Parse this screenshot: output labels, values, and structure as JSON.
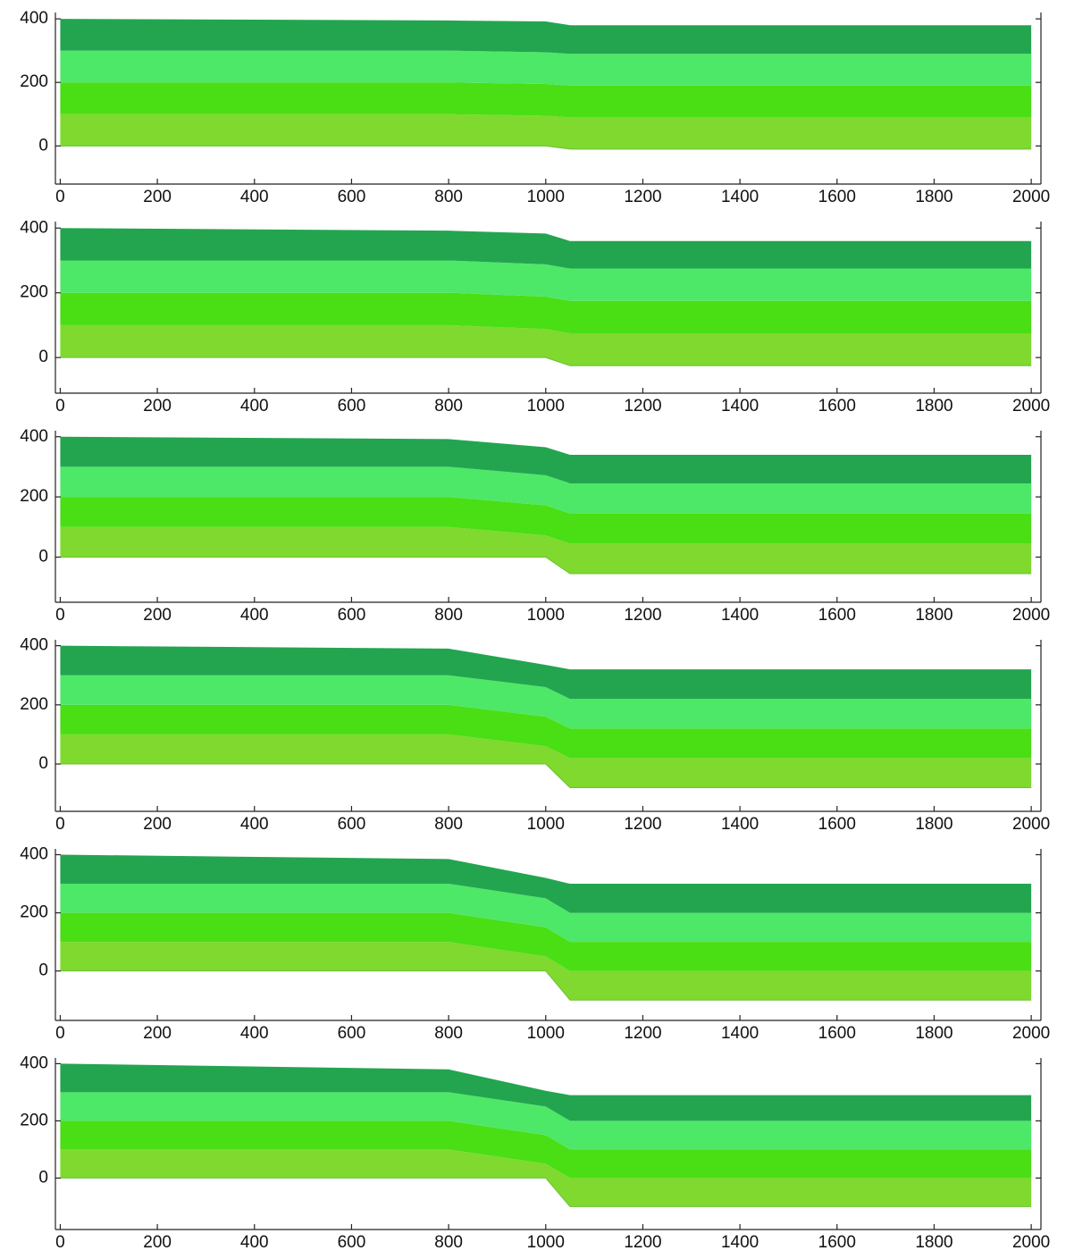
{
  "chart_data": [
    {
      "type": "layers",
      "x": [
        0,
        800,
        1000,
        1050,
        2000
      ],
      "base": [
        0,
        0,
        0,
        -10,
        -10
      ],
      "series": [
        {
          "color": "#7fd92e",
          "values": [
            100,
            100,
            95,
            100,
            100
          ]
        },
        {
          "color": "#4ade14",
          "values": [
            100,
            100,
            100,
            100,
            100
          ]
        },
        {
          "color": "#4de868",
          "values": [
            100,
            100,
            100,
            100,
            100
          ]
        },
        {
          "color": "#23a550",
          "values": [
            100,
            95,
            97,
            90,
            90
          ]
        }
      ],
      "xlim": [
        -10,
        2020
      ],
      "xticks": [
        0,
        200,
        400,
        600,
        800,
        1000,
        1200,
        1400,
        1600,
        1800,
        2000
      ],
      "ylim": [
        -120,
        420
      ],
      "yticks": [
        0,
        200,
        400
      ]
    },
    {
      "type": "layers",
      "x": [
        0,
        800,
        1000,
        1050,
        2000
      ],
      "base": [
        0,
        0,
        0,
        -25,
        -25
      ],
      "series": [
        {
          "color": "#7fd92e",
          "values": [
            100,
            100,
            88,
            100,
            100
          ]
        },
        {
          "color": "#4ade14",
          "values": [
            100,
            100,
            100,
            100,
            100
          ]
        },
        {
          "color": "#4de868",
          "values": [
            100,
            100,
            100,
            100,
            100
          ]
        },
        {
          "color": "#23a550",
          "values": [
            100,
            92,
            95,
            85,
            85
          ]
        }
      ],
      "xlim": [
        -10,
        2020
      ],
      "xticks": [
        0,
        200,
        400,
        600,
        800,
        1000,
        1200,
        1400,
        1600,
        1800,
        2000
      ],
      "ylim": [
        -110,
        420
      ],
      "yticks": [
        0,
        200,
        400
      ]
    },
    {
      "type": "layers",
      "x": [
        0,
        800,
        1000,
        1050,
        2000
      ],
      "base": [
        0,
        0,
        0,
        -55,
        -55
      ],
      "series": [
        {
          "color": "#7fd92e",
          "values": [
            100,
            100,
            72,
            100,
            100
          ]
        },
        {
          "color": "#4ade14",
          "values": [
            100,
            100,
            100,
            100,
            100
          ]
        },
        {
          "color": "#4de868",
          "values": [
            100,
            100,
            100,
            100,
            100
          ]
        },
        {
          "color": "#23a550",
          "values": [
            100,
            92,
            93,
            95,
            95
          ]
        }
      ],
      "xlim": [
        -10,
        2020
      ],
      "xticks": [
        0,
        200,
        400,
        600,
        800,
        1000,
        1200,
        1400,
        1600,
        1800,
        2000
      ],
      "ylim": [
        -150,
        420
      ],
      "yticks": [
        0,
        200,
        400
      ]
    },
    {
      "type": "layers",
      "x": [
        0,
        800,
        1000,
        1050,
        2000
      ],
      "base": [
        0,
        0,
        0,
        -80,
        -80
      ],
      "series": [
        {
          "color": "#7fd92e",
          "values": [
            100,
            100,
            60,
            100,
            100
          ]
        },
        {
          "color": "#4ade14",
          "values": [
            100,
            100,
            100,
            100,
            100
          ]
        },
        {
          "color": "#4de868",
          "values": [
            100,
            100,
            100,
            100,
            100
          ]
        },
        {
          "color": "#23a550",
          "values": [
            100,
            90,
            75,
            100,
            100
          ]
        }
      ],
      "xlim": [
        -10,
        2020
      ],
      "xticks": [
        0,
        200,
        400,
        600,
        800,
        1000,
        1200,
        1400,
        1600,
        1800,
        2000
      ],
      "ylim": [
        -160,
        420
      ],
      "yticks": [
        0,
        200,
        400
      ]
    },
    {
      "type": "layers",
      "x": [
        0,
        800,
        1000,
        1050,
        2000
      ],
      "base": [
        0,
        0,
        0,
        -100,
        -100
      ],
      "series": [
        {
          "color": "#7fd92e",
          "values": [
            100,
            100,
            50,
            100,
            100
          ]
        },
        {
          "color": "#4ade14",
          "values": [
            100,
            100,
            100,
            100,
            100
          ]
        },
        {
          "color": "#4de868",
          "values": [
            100,
            100,
            100,
            100,
            100
          ]
        },
        {
          "color": "#23a550",
          "values": [
            100,
            85,
            70,
            100,
            100
          ]
        }
      ],
      "xlim": [
        -10,
        2020
      ],
      "xticks": [
        0,
        200,
        400,
        600,
        800,
        1000,
        1200,
        1400,
        1600,
        1800,
        2000
      ],
      "ylim": [
        -170,
        420
      ],
      "yticks": [
        0,
        200,
        400
      ]
    },
    {
      "type": "layers",
      "x": [
        0,
        800,
        1000,
        1050,
        2000
      ],
      "base": [
        0,
        0,
        0,
        -100,
        -100
      ],
      "series": [
        {
          "color": "#7fd92e",
          "values": [
            100,
            100,
            50,
            100,
            100
          ]
        },
        {
          "color": "#4ade14",
          "values": [
            100,
            100,
            100,
            100,
            100
          ]
        },
        {
          "color": "#4de868",
          "values": [
            100,
            100,
            100,
            100,
            100
          ]
        },
        {
          "color": "#23a550",
          "values": [
            100,
            80,
            55,
            90,
            90
          ]
        }
      ],
      "xlim": [
        -10,
        2020
      ],
      "xticks": [
        0,
        200,
        400,
        600,
        800,
        1000,
        1200,
        1400,
        1600,
        1800,
        2000
      ],
      "ylim": [
        -180,
        420
      ],
      "yticks": [
        0,
        200,
        400
      ]
    }
  ]
}
